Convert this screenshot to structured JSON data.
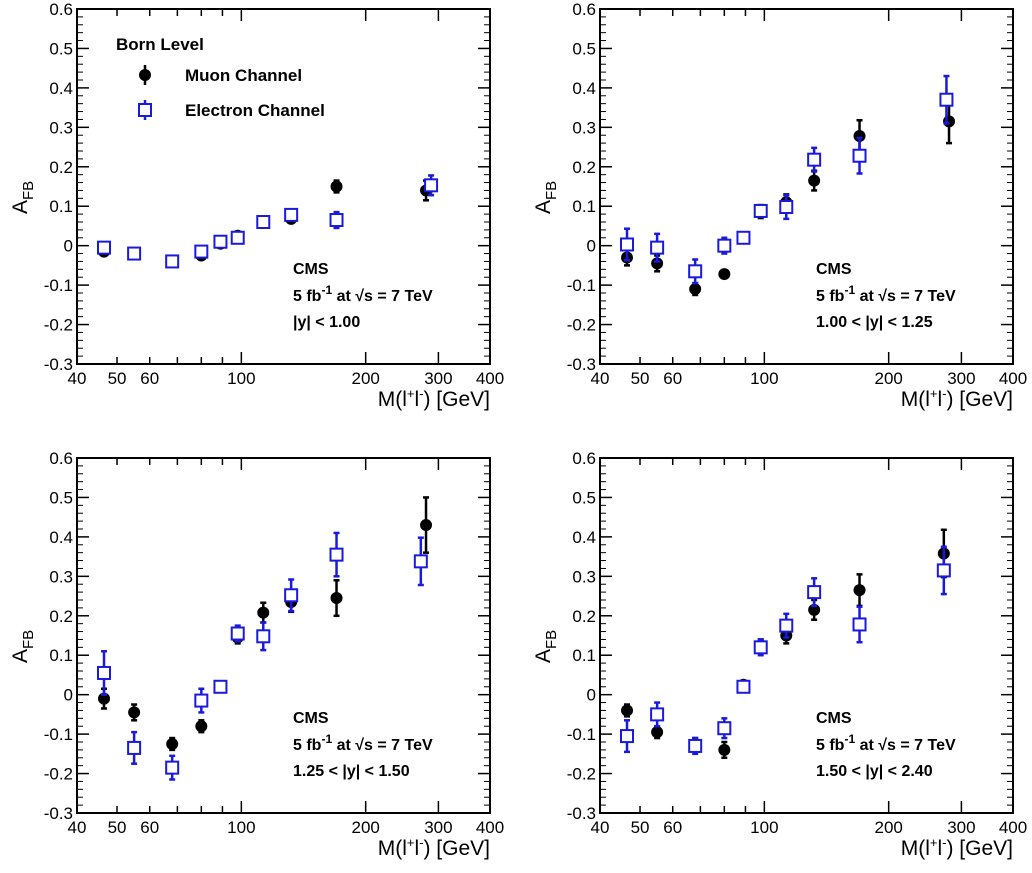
{
  "figure": {
    "legend": {
      "title": "Born Level",
      "entries": [
        "Muon Channel",
        "Electron Channel"
      ]
    },
    "colors": {
      "muon": "#000000",
      "electron": "#1a1adc",
      "axis": "#000000"
    }
  },
  "chart_data": [
    {
      "type": "scatter",
      "xlabel": "M(l+l-) [GeV]",
      "ylabel": "AFB",
      "x_scale": "log",
      "xlim": [
        40,
        400
      ],
      "ylim": [
        -0.3,
        0.6
      ],
      "x_ticks": [
        40,
        50,
        60,
        100,
        200,
        300,
        400
      ],
      "y_ticks": [
        "-0.3",
        "-0.2",
        "-0.1",
        "0",
        "0.1",
        "0.2",
        "0.3",
        "0.4",
        "0.5",
        "0.6"
      ],
      "annotations": [
        "CMS",
        "5 fb-1 at √s = 7 TeV",
        "|y| < 1.00"
      ],
      "series": [
        {
          "name": "Muon Channel",
          "marker": "filled-circle",
          "x": [
            46.5,
            55,
            68,
            80,
            89,
            98,
            113,
            132,
            170,
            280
          ],
          "y": [
            -0.015,
            -0.02,
            -0.04,
            -0.025,
            0.005,
            0.025,
            0.058,
            0.068,
            0.15,
            0.14
          ],
          "err": [
            0.01,
            0.008,
            0.008,
            0.008,
            0.008,
            0.008,
            0.01,
            0.01,
            0.015,
            0.025
          ]
        },
        {
          "name": "Electron Channel",
          "marker": "open-square",
          "x": [
            46.5,
            55,
            68,
            80,
            89,
            98,
            113,
            132,
            170,
            288
          ],
          "y": [
            -0.005,
            -0.02,
            -0.04,
            -0.015,
            0.01,
            0.02,
            0.06,
            0.078,
            0.065,
            0.153
          ],
          "err": [
            0.012,
            0.008,
            0.008,
            0.012,
            0.008,
            0.008,
            0.01,
            0.012,
            0.02,
            0.025
          ]
        }
      ]
    },
    {
      "type": "scatter",
      "xlabel": "M(l+l-) [GeV]",
      "ylabel": "AFB",
      "x_scale": "log",
      "xlim": [
        40,
        400
      ],
      "ylim": [
        -0.3,
        0.6
      ],
      "x_ticks": [
        40,
        50,
        60,
        100,
        200,
        300,
        400
      ],
      "y_ticks": [
        "-0.3",
        "-0.2",
        "-0.1",
        "0",
        "0.1",
        "0.2",
        "0.3",
        "0.4",
        "0.5",
        "0.6"
      ],
      "annotations": [
        "CMS",
        "5 fb-1 at √s = 7 TeV",
        "1.00 < |y| < 1.25"
      ],
      "series": [
        {
          "name": "Muon Channel",
          "marker": "filled-circle",
          "x": [
            46.5,
            55,
            68,
            80,
            89,
            98,
            113,
            132,
            170,
            280
          ],
          "y": [
            -0.03,
            -0.045,
            -0.11,
            -0.072,
            0.018,
            0.085,
            0.11,
            0.165,
            0.278,
            0.315
          ],
          "err": [
            0.02,
            0.02,
            0.015,
            0.01,
            0.01,
            0.015,
            0.02,
            0.025,
            0.04,
            0.055
          ]
        },
        {
          "name": "Electron Channel",
          "marker": "open-square",
          "x": [
            46.5,
            55,
            68,
            80,
            89,
            98,
            113,
            132,
            170,
            276
          ],
          "y": [
            0.003,
            -0.005,
            -0.065,
            0.0,
            0.02,
            0.088,
            0.098,
            0.218,
            0.228,
            0.37
          ],
          "err": [
            0.04,
            0.035,
            0.03,
            0.02,
            0.01,
            0.015,
            0.03,
            0.03,
            0.045,
            0.06
          ]
        }
      ]
    },
    {
      "type": "scatter",
      "xlabel": "M(l+l-) [GeV]",
      "ylabel": "AFB",
      "x_scale": "log",
      "xlim": [
        40,
        400
      ],
      "ylim": [
        -0.3,
        0.6
      ],
      "x_ticks": [
        40,
        50,
        60,
        100,
        200,
        300,
        400
      ],
      "y_ticks": [
        "-0.3",
        "-0.2",
        "-0.1",
        "0",
        "0.1",
        "0.2",
        "0.3",
        "0.4",
        "0.5",
        "0.6"
      ],
      "annotations": [
        "CMS",
        "5 fb-1 at √s = 7 TeV",
        "1.25 < |y| < 1.50"
      ],
      "series": [
        {
          "name": "Muon Channel",
          "marker": "filled-circle",
          "x": [
            46.5,
            55,
            68,
            80,
            89,
            98,
            113,
            132,
            170,
            280
          ],
          "y": [
            -0.01,
            -0.045,
            -0.125,
            -0.08,
            0.02,
            0.145,
            0.208,
            0.235,
            0.245,
            0.43
          ],
          "err": [
            0.025,
            0.02,
            0.015,
            0.015,
            0.01,
            0.015,
            0.025,
            0.025,
            0.045,
            0.07
          ]
        },
        {
          "name": "Electron Channel",
          "marker": "open-square",
          "x": [
            46.5,
            55,
            68,
            80,
            89,
            98,
            113,
            132,
            170,
            272
          ],
          "y": [
            0.055,
            -0.135,
            -0.185,
            -0.015,
            0.02,
            0.155,
            0.148,
            0.252,
            0.355,
            0.338
          ],
          "err": [
            0.055,
            0.04,
            0.03,
            0.03,
            0.01,
            0.02,
            0.035,
            0.04,
            0.055,
            0.06
          ]
        }
      ]
    },
    {
      "type": "scatter",
      "xlabel": "M(l+l-) [GeV]",
      "ylabel": "AFB",
      "x_scale": "log",
      "xlim": [
        40,
        400
      ],
      "ylim": [
        -0.3,
        0.6
      ],
      "x_ticks": [
        40,
        50,
        60,
        100,
        200,
        300,
        400
      ],
      "y_ticks": [
        "-0.3",
        "-0.2",
        "-0.1",
        "0",
        "0.1",
        "0.2",
        "0.3",
        "0.4",
        "0.5",
        "0.6"
      ],
      "annotations": [
        "CMS",
        "5 fb-1 at √s = 7 TeV",
        "1.50 < |y| < 2.40"
      ],
      "series": [
        {
          "name": "Muon Channel",
          "marker": "filled-circle",
          "x": [
            46.5,
            55,
            68,
            80,
            89,
            98,
            113,
            132,
            170,
            272
          ],
          "y": [
            -0.04,
            -0.095,
            -0.125,
            -0.14,
            0.025,
            0.125,
            0.15,
            0.215,
            0.265,
            0.358
          ],
          "err": [
            0.015,
            0.015,
            0.015,
            0.02,
            0.01,
            0.015,
            0.02,
            0.025,
            0.04,
            0.06
          ]
        },
        {
          "name": "Electron Channel",
          "marker": "open-square",
          "x": [
            46.5,
            55,
            68,
            80,
            89,
            98,
            113,
            132,
            170,
            272
          ],
          "y": [
            -0.105,
            -0.05,
            -0.13,
            -0.085,
            0.02,
            0.12,
            0.175,
            0.26,
            0.178,
            0.315
          ],
          "err": [
            0.04,
            0.03,
            0.02,
            0.025,
            0.01,
            0.02,
            0.03,
            0.035,
            0.045,
            0.06
          ]
        }
      ]
    }
  ]
}
